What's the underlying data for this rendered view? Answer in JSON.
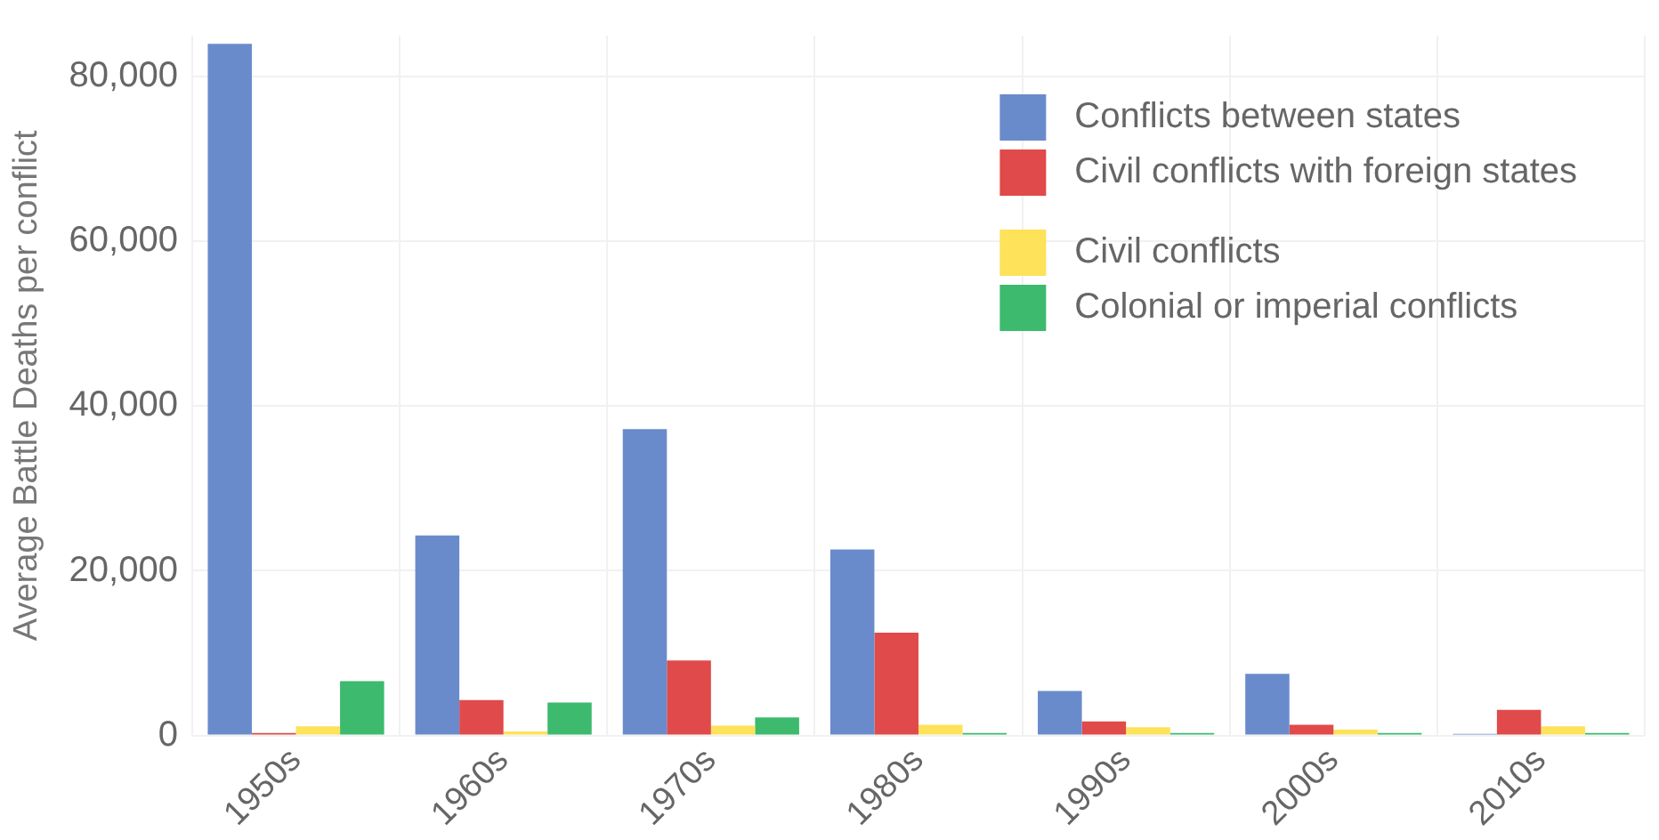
{
  "chart_data": {
    "type": "bar",
    "ylabel": "Average Battle Deaths per conflict",
    "categories": [
      "1950s",
      "1960s",
      "1970s",
      "1980s",
      "1990s",
      "2000s",
      "2010s"
    ],
    "series": [
      {
        "name": "Conflicts between states",
        "color": "#6a8bcb",
        "values": [
          84000,
          24300,
          37200,
          22600,
          5400,
          7500,
          200
        ]
      },
      {
        "name": "Civil conflicts with foreign states",
        "color": "#e04a4a",
        "values": [
          300,
          4300,
          9100,
          12500,
          1700,
          1300,
          3100
        ]
      },
      {
        "name": "Civil conflicts",
        "color": "#fde25a",
        "values": [
          1100,
          500,
          1200,
          1300,
          1000,
          700,
          1100
        ]
      },
      {
        "name": "Colonial or imperial conflicts",
        "color": "#3dba6e",
        "values": [
          6600,
          4000,
          2200,
          300,
          300,
          300,
          300
        ]
      }
    ],
    "ylim": [
      0,
      85000
    ],
    "yticks": [
      0,
      {
        "value": 20000,
        "label": "20,000"
      },
      {
        "value": 40000,
        "label": "40,000"
      },
      {
        "value": 60000,
        "label": "60,000"
      },
      {
        "value": 80000,
        "label": "80,000"
      }
    ],
    "grid": true,
    "legend": "top right"
  }
}
